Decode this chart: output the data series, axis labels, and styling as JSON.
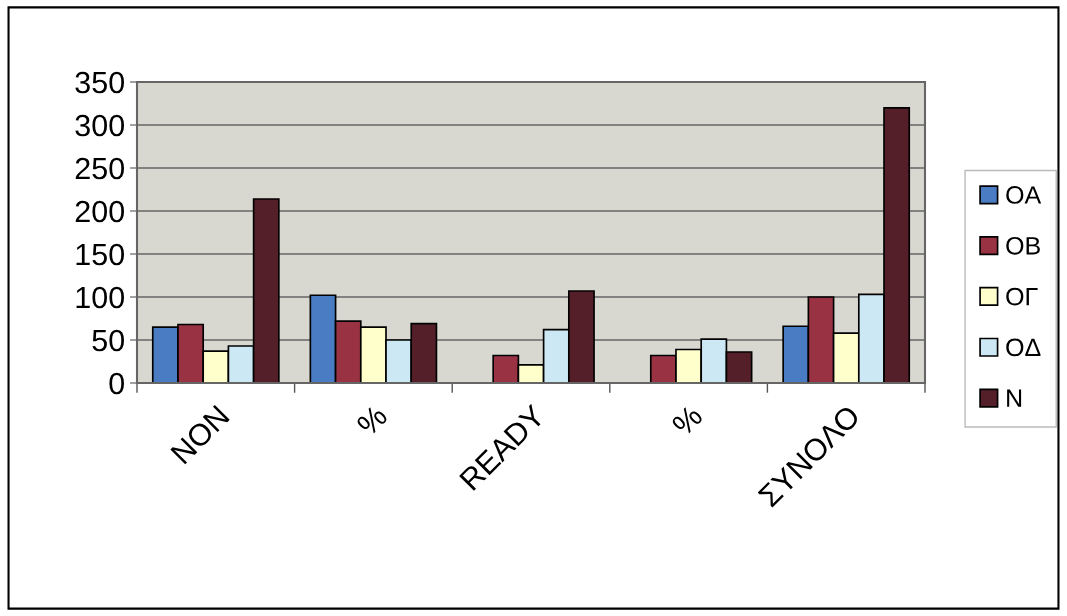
{
  "chart_data": {
    "type": "bar",
    "categories": [
      "NON",
      "%",
      "READY",
      "%",
      "ΣΥΝΟΛΟ"
    ],
    "series": [
      {
        "name": "OA",
        "color": "#4a7cc4",
        "values": [
          65,
          102,
          null,
          null,
          66
        ]
      },
      {
        "name": "OB",
        "color": "#993344",
        "values": [
          68,
          72,
          32,
          32,
          100
        ]
      },
      {
        "name": "OΓ",
        "color": "#ffffcc",
        "values": [
          37,
          65,
          21,
          39,
          58
        ]
      },
      {
        "name": "OΔ",
        "color": "#cce8f4",
        "values": [
          43,
          50,
          62,
          51,
          103
        ]
      },
      {
        "name": "N",
        "color": "#551f2a",
        "values": [
          214,
          69,
          107,
          36,
          320
        ]
      }
    ],
    "ylim": [
      0,
      350
    ],
    "yticks": [
      0,
      50,
      100,
      150,
      200,
      250,
      300,
      350
    ],
    "grid": "y",
    "legend": "right"
  }
}
